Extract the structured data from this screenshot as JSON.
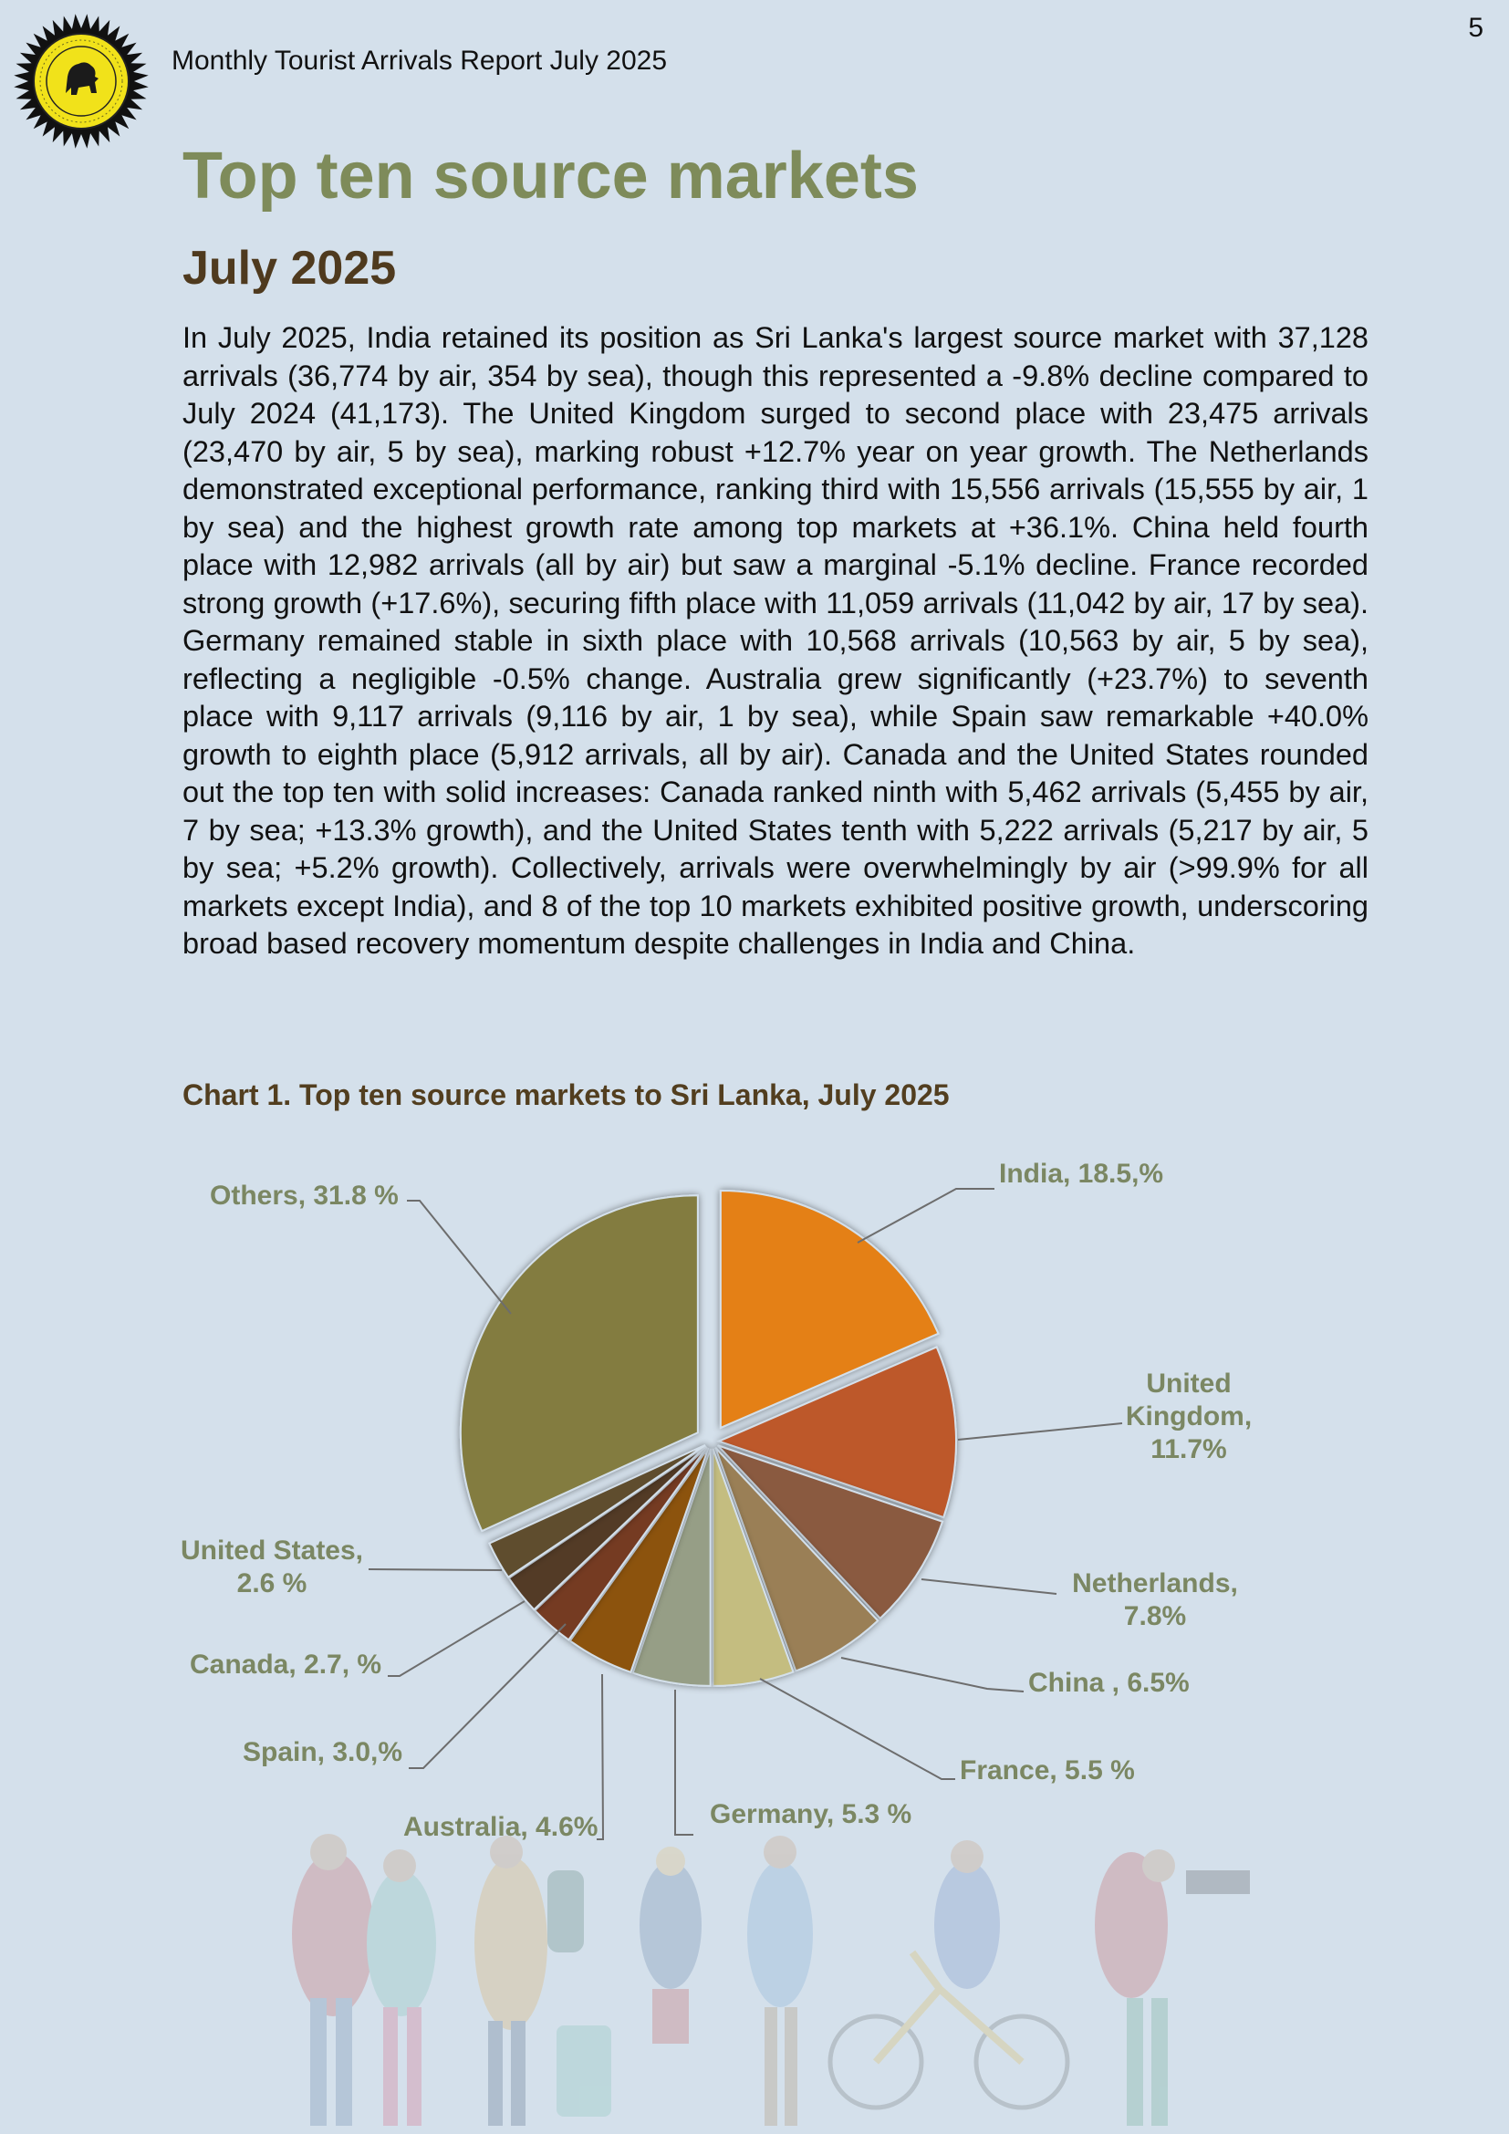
{
  "header": {
    "page_number": "5",
    "report_title": "Monthly Tourist Arrivals Report July 2025"
  },
  "title": "Top ten source markets",
  "subtitle": "July 2025",
  "body_text": "In July 2025, India retained its position as Sri Lanka's largest source market with 37,128 arrivals (36,774 by air, 354 by sea), though this represented a -9.8% decline compared to July 2024 (41,173). The United Kingdom surged to second place with 23,475 arrivals (23,470 by air, 5 by sea), marking robust +12.7% year on year growth. The Netherlands demonstrated exceptional performance, ranking third with 15,556 arrivals (15,555 by air, 1 by sea) and the highest growth rate among top markets at +36.1%. China held fourth place with 12,982 arrivals (all by air) but saw a marginal -5.1% decline. France recorded strong growth (+17.6%), securing fifth place with 11,059 arrivals (11,042 by air, 17 by sea). Germany remained stable in sixth place with 10,568 arrivals (10,563 by air, 5 by sea), reflecting a negligible -0.5% change. Australia grew significantly (+23.7%) to seventh place with 9,117 arrivals (9,116 by air, 1 by sea), while Spain saw remarkable +40.0% growth to eighth place (5,912 arrivals, all by air). Canada and the United States rounded out the top ten with solid increases: Canada ranked ninth with 5,462 arrivals (5,455 by air, 7 by sea; +13.3% growth), and the United States tenth with 5,222 arrivals (5,217 by air, 5 by sea; +5.2% growth). Collectively, arrivals were overwhelmingly by air (>99.9% for all markets except India), and 8 of the top 10 markets exhibited positive growth, underscoring broad based recovery momentum despite challenges in India and China.",
  "chart_caption": "Chart 1. Top ten source markets to Sri Lanka, July 2025",
  "chart_data": {
    "type": "pie",
    "title": "Chart 1. Top ten source markets to Sri Lanka, July 2025",
    "unit": "%",
    "slices": [
      {
        "name": "India",
        "value": 18.5,
        "label_lines": [
          "India, 18.5,%"
        ],
        "color": "#e48012"
      },
      {
        "name": "United Kingdom",
        "value": 11.7,
        "label_lines": [
          "United",
          "Kingdom,",
          "11.7%"
        ],
        "color": "#bd582c"
      },
      {
        "name": "Netherlands",
        "value": 7.8,
        "label_lines": [
          "Netherlands,",
          "7.8%"
        ],
        "color": "#8a5a3f"
      },
      {
        "name": "China",
        "value": 6.5,
        "label_lines": [
          "China , 6.5%"
        ],
        "color": "#9a7f56"
      },
      {
        "name": "France",
        "value": 5.5,
        "label_lines": [
          "France, 5.5 %"
        ],
        "color": "#c4bd80"
      },
      {
        "name": "Germany",
        "value": 5.3,
        "label_lines": [
          "Germany, 5.3 %"
        ],
        "color": "#969e86"
      },
      {
        "name": "Australia",
        "value": 4.6,
        "label_lines": [
          "Australia, 4.6%"
        ],
        "color": "#8c520f"
      },
      {
        "name": "Spain",
        "value": 3.0,
        "label_lines": [
          "Spain, 3.0,%"
        ],
        "color": "#743a20"
      },
      {
        "name": "Canada",
        "value": 2.7,
        "label_lines": [
          "Canada, 2.7, %"
        ],
        "color": "#533b27"
      },
      {
        "name": "United States",
        "value": 2.6,
        "label_lines": [
          "United States,",
          "2.6 %"
        ],
        "color": "#5f4d2f"
      },
      {
        "name": "Others",
        "value": 31.8,
        "label_lines": [
          "Others, 31.8 %"
        ],
        "color": "#837c41"
      }
    ]
  }
}
